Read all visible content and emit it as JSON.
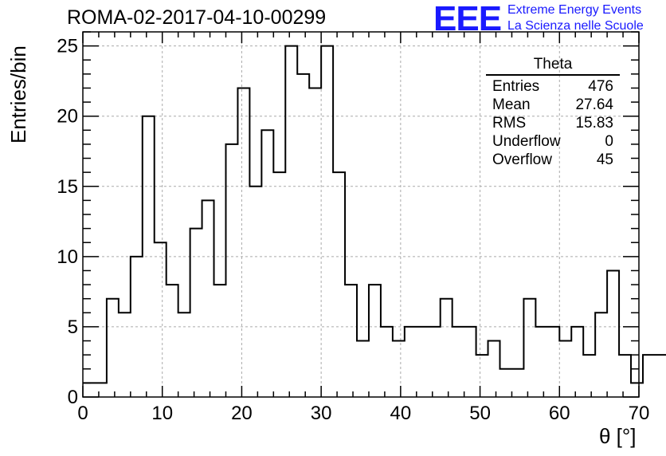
{
  "header": {
    "title": "ROMA-02-2017-04-10-00299",
    "logo_text": "EEE",
    "logo_line1": "Extreme Energy Events",
    "logo_line2": "La Scienza nelle Scuole"
  },
  "colors": {
    "logo": "#1a1aff",
    "line": "#000000",
    "grid": "#aaaaaa"
  },
  "stats": {
    "title": "Theta",
    "rows": [
      {
        "label": "Entries",
        "value": "476"
      },
      {
        "label": "Mean",
        "value": "27.64"
      },
      {
        "label": "RMS",
        "value": "15.83"
      },
      {
        "label": "Underflow",
        "value": "0"
      },
      {
        "label": "Overflow",
        "value": "45"
      }
    ]
  },
  "chart_data": {
    "type": "histogram",
    "title": "ROMA-02-2017-04-10-00299",
    "xlabel": "θ [°]",
    "ylabel": "Entries/bin",
    "xlim": [
      0,
      70
    ],
    "ylim": [
      0,
      26
    ],
    "bin_width": 1.5,
    "bin_start": 0,
    "values": [
      1,
      1,
      7,
      6,
      10,
      20,
      11,
      8,
      6,
      12,
      14,
      8,
      18,
      22,
      15,
      19,
      16,
      25,
      23,
      22,
      25,
      16,
      8,
      4,
      8,
      5,
      4,
      5,
      5,
      5,
      7,
      5,
      5,
      3,
      4,
      2,
      2,
      7,
      5,
      5,
      4,
      5,
      3,
      6,
      9,
      3,
      1,
      3,
      3
    ],
    "x_ticks": [
      "0",
      "10",
      "20",
      "30",
      "40",
      "50",
      "60",
      "70"
    ],
    "y_ticks": [
      "0",
      "5",
      "10",
      "15",
      "20",
      "25"
    ],
    "grid": true
  }
}
